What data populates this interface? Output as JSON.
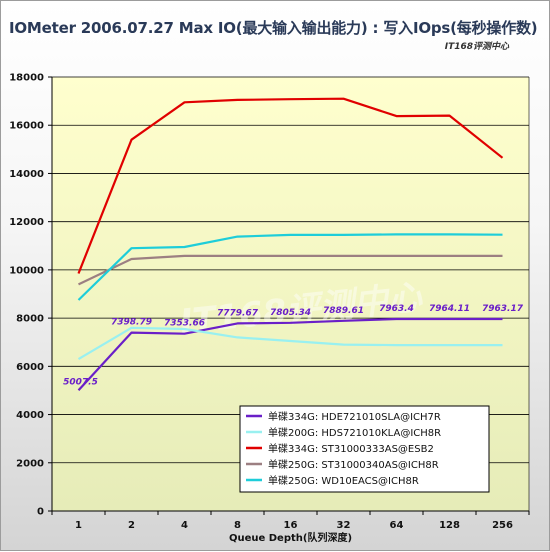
{
  "title": "IOMeter 2006.07.27 Max IO(最大输入输出能力) : 写入IOps(每秒操作数)",
  "watermark": "IT168评测中心",
  "watermark_big": "IT168评测中心",
  "chart_data": {
    "type": "line",
    "x": [
      "1",
      "2",
      "4",
      "8",
      "16",
      "32",
      "64",
      "128",
      "256"
    ],
    "xlabel": "Queue Depth(队列深度)",
    "ylabel": "",
    "ylim": [
      0,
      18000
    ],
    "yticks": [
      "0",
      "2000",
      "4000",
      "6000",
      "8000",
      "10000",
      "12000",
      "14000",
      "16000",
      "18000"
    ],
    "grid": true,
    "legend_position": "bottom-right",
    "series": [
      {
        "name": "单碟334G: HDE721010SLA@ICH7R",
        "color": "#6a1fc8",
        "values": [
          5007.5,
          7398.79,
          7353.66,
          7779.67,
          7805.34,
          7889.61,
          7963.4,
          7964.11,
          7963.17
        ],
        "labels": [
          "5007.5",
          "7398.79",
          "7353.66",
          "7779.67",
          "7805.34",
          "7889.61",
          "7963.4",
          "7964.11",
          "7963.17"
        ]
      },
      {
        "name": "单碟200G: HDS721010KLA@ICH8R",
        "color": "#99f0f0",
        "values": [
          6300,
          7600,
          7550,
          7200,
          7050,
          6900,
          6880,
          6880,
          6880
        ]
      },
      {
        "name": "单碟334G: ST31000333AS@ESB2",
        "color": "#e00000",
        "values": [
          9850,
          15400,
          16950,
          17050,
          17080,
          17100,
          16380,
          16400,
          14650
        ]
      },
      {
        "name": "单碟250G: ST31000340AS@ICH8R",
        "color": "#9c7f82",
        "values": [
          9400,
          10450,
          10580,
          10580,
          10580,
          10580,
          10580,
          10580,
          10580
        ]
      },
      {
        "name": "单碟250G: WD10EACS@ICH8R",
        "color": "#1ecdd9",
        "values": [
          8750,
          10900,
          10950,
          11380,
          11450,
          11450,
          11470,
          11470,
          11460
        ]
      }
    ]
  }
}
